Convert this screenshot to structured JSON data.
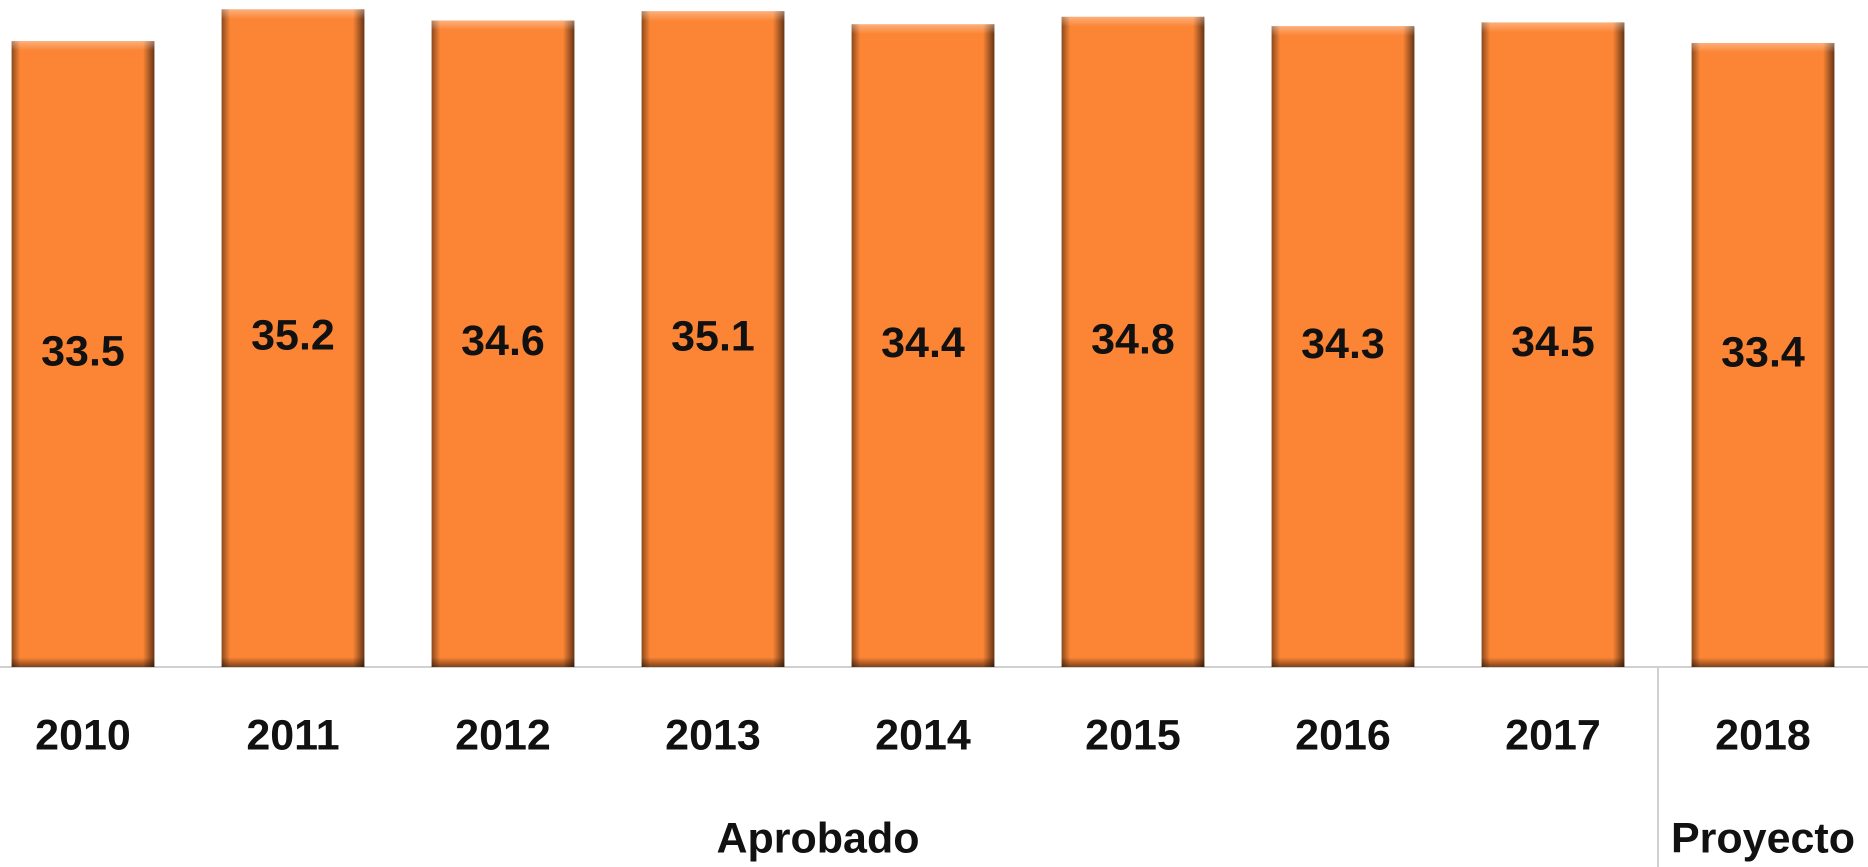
{
  "chart_data": {
    "type": "bar",
    "categories": [
      "2010",
      "2011",
      "2012",
      "2013",
      "2014",
      "2015",
      "2016",
      "2017",
      "2018"
    ],
    "groups": [
      "Aprobado",
      "Aprobado",
      "Aprobado",
      "Aprobado",
      "Aprobado",
      "Aprobado",
      "Aprobado",
      "Aprobado",
      "Proyecto"
    ],
    "values": [
      33.5,
      35.2,
      34.6,
      35.1,
      34.4,
      34.8,
      34.3,
      34.5,
      33.4
    ],
    "color": "#fb8535",
    "ylim": [
      0,
      35.7
    ]
  }
}
